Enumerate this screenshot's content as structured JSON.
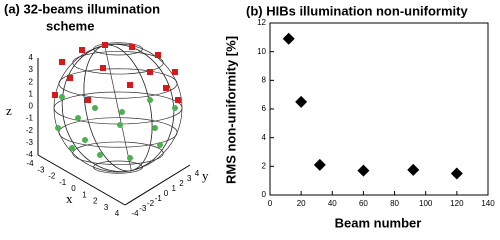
{
  "diagram": {
    "title_line1": "(a)  32-beams illumination",
    "title_line2": "scheme",
    "z_label": "z",
    "x_label": "x",
    "y_label": "y",
    "z_ticks": [
      -4,
      -3,
      -2,
      -1,
      0,
      1,
      2,
      3,
      4
    ],
    "x_ticks": [
      -4,
      -3,
      -2,
      -1,
      0,
      1,
      2,
      3,
      4
    ],
    "y_ticks": [
      -4,
      -3,
      -2,
      -1,
      0,
      1,
      2,
      3,
      4
    ]
  },
  "chart_data": {
    "type": "scatter",
    "title": "(b) HIBs illumination non-uniformity",
    "x_label": "Beam number",
    "y_label": "RMS non-uniformity [%]",
    "series": [
      {
        "color": "#000000",
        "marker": "diamond",
        "x": [
          12,
          20,
          32,
          60,
          92,
          120
        ],
        "values": [
          10.9,
          6.5,
          2.1,
          1.7,
          1.75,
          1.5
        ]
      }
    ],
    "xlim": [
      0,
      140
    ],
    "xticks": [
      0,
      20,
      40,
      60,
      80,
      100,
      120,
      140
    ],
    "ylim": [
      0,
      12
    ],
    "yticks": [
      0,
      2,
      4,
      6,
      8,
      10,
      12
    ]
  }
}
